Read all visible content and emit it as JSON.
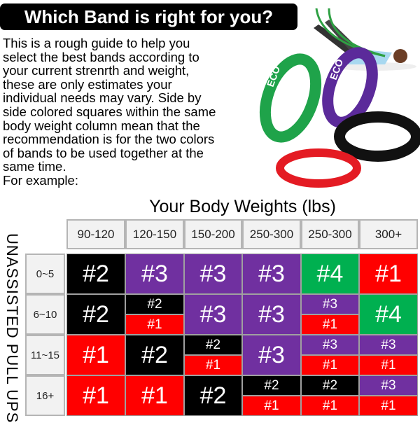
{
  "title": "Which Band is right for you?",
  "intro_lines": [
    "This is a rough guide to help you",
    "select the best bands according to",
    "your current strenrth and weight,",
    "these are only estimates your",
    "individual needs may vary. Side by",
    "side colored squares within the same",
    "body weight column mean that the",
    "recommendation is for the two colors",
    "of bands to be used together at the",
    "same time.",
    "For example:"
  ],
  "logo_text": "ECO",
  "table": {
    "column_title": "Your Body Weights (lbs)",
    "row_title": "UNASSISTED PULL UPS",
    "columns": [
      "90-120",
      "120-150",
      "150-200",
      "250-300",
      "250-300",
      "300+"
    ],
    "colors": {
      "#1": "#ff0000",
      "#2": "#000000",
      "#3": "#7030a0",
      "#4": "#00b050"
    },
    "rows": [
      {
        "label": "0~5",
        "cells": [
          [
            "#2"
          ],
          [
            "#3"
          ],
          [
            "#3"
          ],
          [
            "#3"
          ],
          [
            "#4"
          ],
          [
            "#1"
          ]
        ]
      },
      {
        "label": "6~10",
        "cells": [
          [
            "#2"
          ],
          [
            "#2",
            "#1"
          ],
          [
            "#3"
          ],
          [
            "#3"
          ],
          [
            "#3",
            "#1"
          ],
          [
            "#4"
          ]
        ]
      },
      {
        "label": "11~15",
        "cells": [
          [
            "#1"
          ],
          [
            "#2"
          ],
          [
            "#2",
            "#1"
          ],
          [
            "#3"
          ],
          [
            "#3",
            "#1"
          ],
          [
            "#3",
            "#1"
          ]
        ]
      },
      {
        "label": "16+",
        "cells": [
          [
            "#1"
          ],
          [
            "#1"
          ],
          [
            "#2"
          ],
          [
            "#2",
            "#1"
          ],
          [
            "#2",
            "#1"
          ],
          [
            "#3",
            "#1"
          ]
        ]
      }
    ]
  }
}
